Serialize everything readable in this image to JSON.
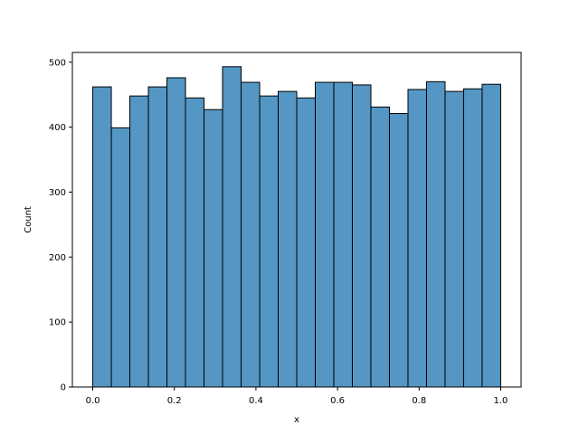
{
  "chart_data": {
    "type": "bar",
    "subtype": "histogram",
    "title": "",
    "xlabel": "x",
    "ylabel": "Count",
    "xlim": [
      -0.05,
      1.05
    ],
    "ylim": [
      0,
      515
    ],
    "bin_edges": [
      0.0,
      0.04545,
      0.09091,
      0.13636,
      0.18182,
      0.22727,
      0.27273,
      0.31818,
      0.36364,
      0.40909,
      0.45455,
      0.5,
      0.54545,
      0.59091,
      0.63636,
      0.68182,
      0.72727,
      0.77273,
      0.81818,
      0.86364,
      0.90909,
      0.95455,
      1.0
    ],
    "values": [
      462,
      399,
      448,
      462,
      476,
      445,
      427,
      493,
      469,
      448,
      455,
      445,
      469,
      469,
      465,
      431,
      421,
      458,
      470,
      455,
      459,
      466
    ],
    "xticks": [
      0.0,
      0.2,
      0.4,
      0.6,
      0.8,
      1.0
    ],
    "xtick_labels": [
      "0.0",
      "0.2",
      "0.4",
      "0.6",
      "0.8",
      "1.0"
    ],
    "yticks": [
      0,
      100,
      200,
      300,
      400,
      500
    ],
    "ytick_labels": [
      "0",
      "100",
      "200",
      "300",
      "400",
      "500"
    ],
    "bar_color": "#5497c5",
    "edge_color": "#000000",
    "grid": false,
    "legend": "none"
  }
}
